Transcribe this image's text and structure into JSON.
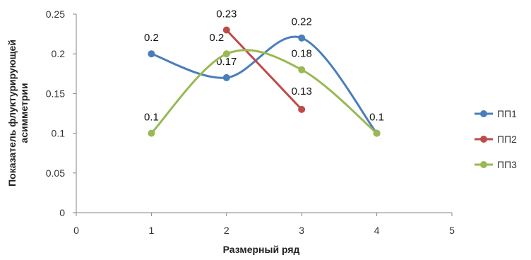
{
  "chart_data": {
    "type": "line",
    "title": "",
    "xlabel": "Размерный ряд",
    "ylabel": "Показатель флуктурирующей асимметрии",
    "xlim": [
      0,
      5
    ],
    "ylim": [
      0,
      0.25
    ],
    "x_ticks": [
      "0",
      "1",
      "2",
      "3",
      "4",
      "5"
    ],
    "y_ticks": [
      "0",
      "0.05",
      "0.1",
      "0.15",
      "0.2",
      "0.25"
    ],
    "grid": false,
    "legend_position": "right",
    "smooth": true,
    "series": [
      {
        "name": "ПП1",
        "color": "#4a7ebb",
        "x": [
          1,
          2,
          3,
          4
        ],
        "y": [
          0.2,
          0.17,
          0.22,
          0.1
        ],
        "labels": [
          "0.2",
          "0.17",
          "0.22",
          "0.1"
        ]
      },
      {
        "name": "ПП2",
        "color": "#be4b48",
        "x": [
          2,
          3
        ],
        "y": [
          0.23,
          0.13
        ],
        "labels": [
          "0.23",
          "0.13"
        ]
      },
      {
        "name": "ПП3",
        "color": "#98b954",
        "x": [
          1,
          2,
          3,
          4
        ],
        "y": [
          0.1,
          0.2,
          0.18,
          0.1
        ],
        "labels": [
          "0.1",
          "0.2",
          "0.18",
          ""
        ]
      }
    ]
  }
}
